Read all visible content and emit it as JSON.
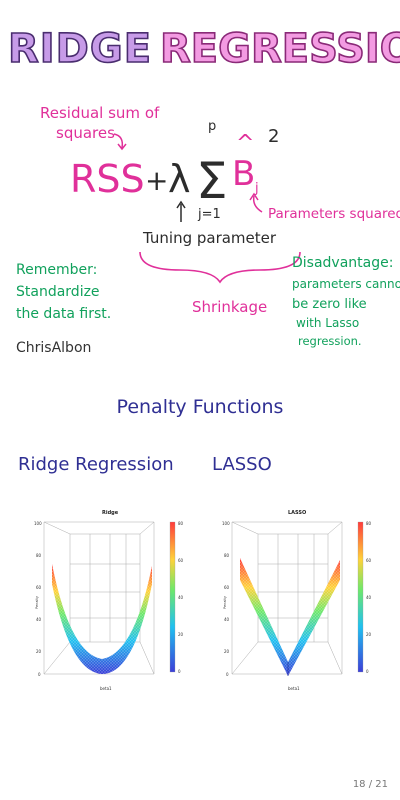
{
  "top": {
    "title_left": "RIDGE",
    "title_right": "REGRESSION",
    "rss_note_line1": "Residual sum of",
    "rss_note_line2": "squares",
    "formula_rss": "RSS",
    "formula_plus": "+",
    "formula_lambda": "λ",
    "formula_sigma": "Σ",
    "formula_upper": "p",
    "formula_lower": "j=1",
    "formula_beta": "B",
    "formula_beta_sub": "j",
    "formula_exp": "2",
    "params_note": "Parameters squared",
    "tuning_note": "Tuning parameter",
    "shrinkage_note": "Shrinkage",
    "remember_lines": [
      "Remember:",
      "Standardize",
      "the data first."
    ],
    "disadv_lines": [
      "Disadvantage:",
      "parameters cannot",
      "be zero like",
      "with Lasso",
      "regression."
    ],
    "signature": "ChrisAlbon",
    "colors": {
      "title_fill": "#c79be8",
      "title_stroke": "#4a2d6f",
      "pink": "#e0309a",
      "green": "#11a15c",
      "dark": "#2c2c2c"
    }
  },
  "slide": {
    "title": "Penalty Functions",
    "left_heading": "Ridge Regression",
    "right_heading": "LASSO",
    "page": "18 / 21",
    "colors": {
      "heading": "#2f2f93"
    }
  },
  "plots": {
    "left": {
      "title": "Ridge",
      "xlabel": "beta1",
      "ylabel": "Penalty",
      "zticks": [
        "100",
        "80",
        "60",
        "40",
        "20",
        "0"
      ],
      "cbar_ticks": [
        "80",
        "60",
        "40",
        "20",
        "0"
      ]
    },
    "right": {
      "title": "LASSO",
      "xlabel": "beta1",
      "ylabel": "Penalty",
      "zticks": [
        "100",
        "80",
        "60",
        "40",
        "20",
        "0"
      ],
      "cbar_ticks": [
        "80",
        "60",
        "40",
        "20",
        "0"
      ]
    }
  }
}
